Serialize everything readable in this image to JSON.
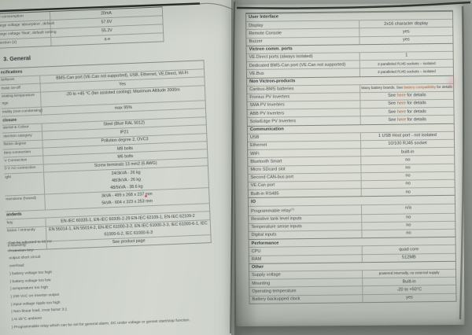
{
  "left_page": {
    "heading": "3. General",
    "charger_table": {
      "rows": [
        {
          "label": "lf-consumption",
          "value": "20mA"
        },
        {
          "label": "arge voltage 'absorption', default",
          "value": "57.6V"
        },
        {
          "label": "arge voltage 'float', default setting",
          "value": "55.2V"
        },
        {
          "label": "tection  (2)",
          "value": "a-e"
        }
      ]
    },
    "general_table": {
      "rows": [
        {
          "type": "section",
          "label": "ecifications"
        },
        {
          "label": "terfaces",
          "value": "BMS-Can port (VE.Can not supported), USB, Ethernet, VE.Direct, Wi-Fi"
        },
        {
          "label": "mote on-off",
          "value": "Yes"
        },
        {
          "label": "erating temperature\nnge",
          "value": "-20 to +45 °C (fan assisted cooling); Maximum Altitude 2000m"
        },
        {
          "label": "midity (non-condensing)",
          "value": "max 95%"
        },
        {
          "type": "section",
          "label": "closure"
        },
        {
          "label": "aterial & Colour",
          "value": "Steel (Blue RAL 5012)"
        },
        {
          "label": "otection category",
          "value": "IP21"
        },
        {
          "label": "llution degree",
          "value": "Pollution degree 2, OVC3"
        },
        {
          "label": "ttery-connection",
          "value": "M8 bolts"
        },
        {
          "label": "V Connection",
          "value": "M6 bolts"
        },
        {
          "label": "0 V AC-connection",
          "value": "Screw terminals 13 mm2 (6 AWG)"
        },
        {
          "label": "ight",
          "value": "24/3kVA - 26 kg\n48/3kVA - 26 kg\n48/5kVA - 38.6 kg"
        },
        {
          "label": "mensions (hxwxd)",
          "value": "3kVA - 499 x 268 x 237 mm\n5kVA - 604 x 323 x 253 mm"
        },
        {
          "type": "section",
          "label": "andards"
        },
        {
          "label": "fety",
          "value": "EN-IEC 60335-1, EN-IEC 60335-2-29 EN-IEC 62109-1, EN-IEC 62109-2"
        },
        {
          "label": "ission / Immunity",
          "value": "EN 55014-1, EN 55014-2, EN-IEC 61000-3-2, EN-IEC 61000-3-3, IEC 61000-6-1, IEC\n61000-6-2, IEC 61000-6-3"
        },
        {
          "label": "ti-islanding",
          "value": "See product page"
        }
      ]
    },
    "footnotes": [
      "Can be adjusted to 60 Hz",
      "Protection key:",
      "output short circuit",
      "overload",
      ") battery voltage too high",
      ") battery voltage too low",
      ") temperature too high",
      ") 230 VAC on inverter output",
      ") input voltage ripple too high",
      ") Non-linear load, crest factor 3:1",
      ") At 25°C ambient",
      ") Programmable relay which can be set for general alarm, DC under voltage or genset start/stop function."
    ]
  },
  "right_page": {
    "spec_table": {
      "sections": [
        {
          "header": "User Interface",
          "rows": [
            {
              "label": "Display",
              "value": "2x16 character display"
            },
            {
              "label": "Remote Console",
              "value": "yes"
            },
            {
              "label": "Buzzer",
              "value": "yes"
            }
          ]
        },
        {
          "header": "Victron comm. ports",
          "rows": [
            {
              "label": "VE.Direct ports (always isolated)",
              "value": "1"
            },
            {
              "label": "Dedicated BMS-Can port (VE.Can not supported)",
              "value": "2 paralleled RJ45 sockets – isolated"
            },
            {
              "label": "VE.Bus",
              "value": "2 paralleled RJ45 sockets – isolated"
            }
          ]
        },
        {
          "header": "Non Victron-products",
          "rows": [
            {
              "label": "Canbus-BMS batteries",
              "value_prefix": "Many battery brands. See ",
              "link": "battery compatibility",
              "value_suffix": " for details"
            },
            {
              "label": "Fronius PV Inverters",
              "value_prefix": "See ",
              "link": "here",
              "value_suffix": " for details"
            },
            {
              "label": "SMA PV Inverters",
              "value_prefix": "See ",
              "link": "here",
              "value_suffix": " for details"
            },
            {
              "label": "ABB PV Inverters",
              "value_prefix": "See ",
              "link": "here",
              "value_suffix": " for details"
            },
            {
              "label": "SolarEdge PV Inverters",
              "value_prefix": "See ",
              "link": "here",
              "value_suffix": " for details"
            }
          ]
        },
        {
          "header": "Communication",
          "rows": [
            {
              "label": "USB",
              "value": "1 USB Host port - not isolated"
            },
            {
              "label": "Ethernet",
              "value": "10/100 RJ45 socket"
            },
            {
              "label": "WiFi",
              "value": "built-in"
            },
            {
              "label": "Bluetooth Smart",
              "value": "no"
            },
            {
              "label": "Micro SDcard slot",
              "value": "no"
            },
            {
              "label": "Second CAN-bus port",
              "value": "no"
            },
            {
              "label": "VE.Can port",
              "value": "no"
            },
            {
              "label": "Built-in RS485",
              "value": "no"
            }
          ]
        },
        {
          "header": "IO",
          "rows": [
            {
              "label": "Programmable relay",
              "label_sup": "(7)",
              "value": "n/a"
            },
            {
              "label": "Resistive tank level inputs",
              "value": "no"
            },
            {
              "label": "Temperature sense inputs",
              "value": "no"
            },
            {
              "label": "Digital inputs",
              "value": "no"
            }
          ]
        },
        {
          "header": "Performance",
          "rows": [
            {
              "label": "CPU",
              "value": "quad core"
            },
            {
              "label": "RAM",
              "value": "512MB"
            }
          ]
        },
        {
          "header": "Other",
          "rows": [
            {
              "label": "Supply voltage",
              "value": "powered internally, no external supply"
            },
            {
              "label": "Mounting",
              "value": "Built-in"
            },
            {
              "label": "Operating temperature",
              "value": "-20 to +50°C"
            },
            {
              "label": "Battery backupped clock",
              "value": "yes"
            }
          ]
        }
      ]
    }
  },
  "colors": {
    "link": "#b0592a",
    "page": "#d8dbd3",
    "background": "#8f948e",
    "text": "#41464a",
    "table_border": "#6e766a"
  }
}
